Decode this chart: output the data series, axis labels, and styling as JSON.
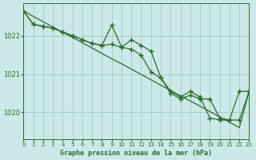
{
  "title": "Graphe pression niveau de la mer (hPa)",
  "background_color": "#cde8e8",
  "grid_color": "#a8cccc",
  "line_color": "#2d6b2d",
  "xlim": [
    0,
    23
  ],
  "ylim": [
    1019.3,
    1022.85
  ],
  "yticks": [
    1020,
    1021,
    1022
  ],
  "xticks": [
    0,
    1,
    2,
    3,
    4,
    5,
    6,
    7,
    8,
    9,
    10,
    11,
    12,
    13,
    14,
    15,
    16,
    17,
    18,
    19,
    20,
    21,
    22,
    23
  ],
  "line1_x": [
    0,
    1,
    2,
    3,
    4,
    5,
    6,
    7,
    8,
    9,
    10,
    11,
    12,
    13,
    14,
    15,
    16,
    17,
    18,
    19,
    20,
    21,
    22,
    23
  ],
  "line1_y": [
    1022.65,
    1022.51,
    1022.37,
    1022.23,
    1022.09,
    1021.96,
    1021.82,
    1021.68,
    1021.54,
    1021.4,
    1021.27,
    1021.13,
    1020.99,
    1020.85,
    1020.71,
    1020.57,
    1020.43,
    1020.3,
    1020.16,
    1020.02,
    1019.88,
    1019.74,
    1019.6,
    1020.55
  ],
  "line2_x": [
    0,
    1,
    2,
    3,
    4,
    5,
    6,
    7,
    8,
    9,
    10,
    11,
    12,
    13,
    14,
    15,
    16,
    17,
    18,
    19,
    20,
    21,
    22,
    23
  ],
  "line2_y": [
    1022.65,
    1022.3,
    1022.25,
    1022.2,
    1022.1,
    1022.0,
    1021.9,
    1021.8,
    1021.75,
    1022.28,
    1021.7,
    1021.9,
    1021.75,
    1021.6,
    1020.9,
    1020.55,
    1020.4,
    1020.55,
    1020.4,
    1019.85,
    1019.8,
    1019.8,
    1020.55,
    1020.55
  ],
  "line3_x": [
    0,
    1,
    2,
    3,
    4,
    5,
    6,
    7,
    8,
    9,
    10,
    11,
    12,
    13,
    14,
    15,
    16,
    17,
    18,
    19,
    20,
    21,
    22,
    23
  ],
  "line3_y": [
    1022.65,
    1022.3,
    1022.25,
    1022.2,
    1022.1,
    1022.0,
    1021.9,
    1021.8,
    1021.75,
    1021.78,
    1021.7,
    1021.65,
    1021.5,
    1021.05,
    1020.9,
    1020.5,
    1020.35,
    1020.45,
    1020.35,
    1020.35,
    1019.85,
    1019.8,
    1019.8,
    1020.55
  ]
}
